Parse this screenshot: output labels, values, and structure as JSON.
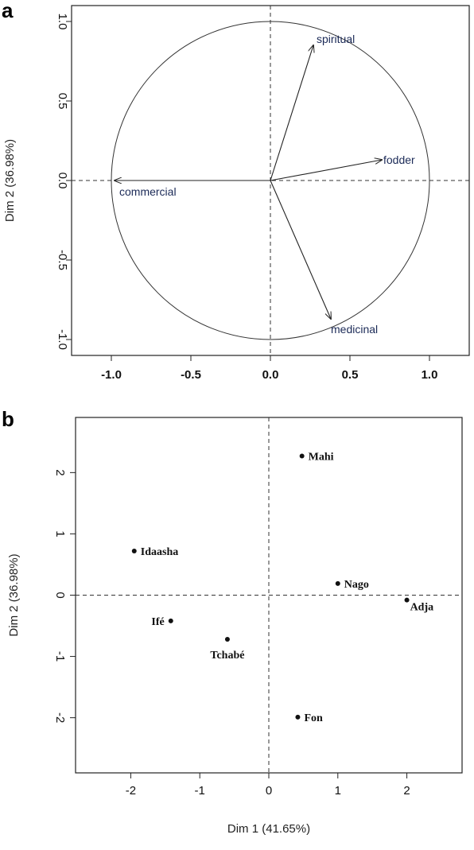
{
  "chart_data": [
    {
      "panel": "a",
      "type": "scatter",
      "subtype": "correlation-circle",
      "xlim": [
        -1.25,
        1.25
      ],
      "ylim": [
        -1.1,
        1.1
      ],
      "xticks": [
        -1.0,
        -0.5,
        0.0,
        0.5,
        1.0
      ],
      "xtick_labels": [
        "-1.0",
        "-0.5",
        "0.0",
        "0.5",
        "1.0"
      ],
      "yticks": [
        -1.0,
        -0.5,
        0.0,
        0.5,
        1.0
      ],
      "ytick_labels": [
        "-1.0",
        "-0.5",
        "0.0",
        "0.5",
        "1.0"
      ],
      "xlabel": "",
      "ylabel": "Dim 2 (36.98%)",
      "grid": false,
      "reference_lines": [
        0,
        0
      ],
      "circle_radius": 1.0,
      "vectors": [
        {
          "name": "spiritual",
          "x": 0.27,
          "y": 0.85
        },
        {
          "name": "fodder",
          "x": 0.7,
          "y": 0.13
        },
        {
          "name": "commercial",
          "x": -0.98,
          "y": 0.0
        },
        {
          "name": "medicinal",
          "x": 0.38,
          "y": -0.87
        }
      ]
    },
    {
      "panel": "b",
      "type": "scatter",
      "xlim": [
        -2.8,
        2.8
      ],
      "ylim": [
        -2.9,
        2.9
      ],
      "xticks": [
        -2,
        -1,
        0,
        1,
        2
      ],
      "xtick_labels": [
        "-2",
        "-1",
        "0",
        "1",
        "2"
      ],
      "yticks": [
        -2,
        -1,
        0,
        1,
        2
      ],
      "ytick_labels": [
        "-2",
        "-1",
        "0",
        "1",
        "2"
      ],
      "xlabel": "Dim 1 (41.65%)",
      "ylabel": "Dim 2 (36.98%)",
      "grid": false,
      "reference_lines": [
        0,
        0
      ],
      "points": [
        {
          "name": "Mahi",
          "x": 0.48,
          "y": 2.27,
          "label_side": "right"
        },
        {
          "name": "Idaasha",
          "x": -1.95,
          "y": 0.72,
          "label_side": "right"
        },
        {
          "name": "Nago",
          "x": 1.0,
          "y": 0.19,
          "label_side": "right"
        },
        {
          "name": "Adja",
          "x": 2.0,
          "y": -0.08,
          "label_side": "right-below"
        },
        {
          "name": "Ifé",
          "x": -1.42,
          "y": -0.42,
          "label_side": "left"
        },
        {
          "name": "Tchabé",
          "x": -0.6,
          "y": -0.72,
          "label_side": "below"
        },
        {
          "name": "Fon",
          "x": 0.42,
          "y": -1.99,
          "label_side": "right"
        }
      ]
    }
  ],
  "panel_a": {
    "letter": "a"
  },
  "panel_b": {
    "letter": "b"
  }
}
